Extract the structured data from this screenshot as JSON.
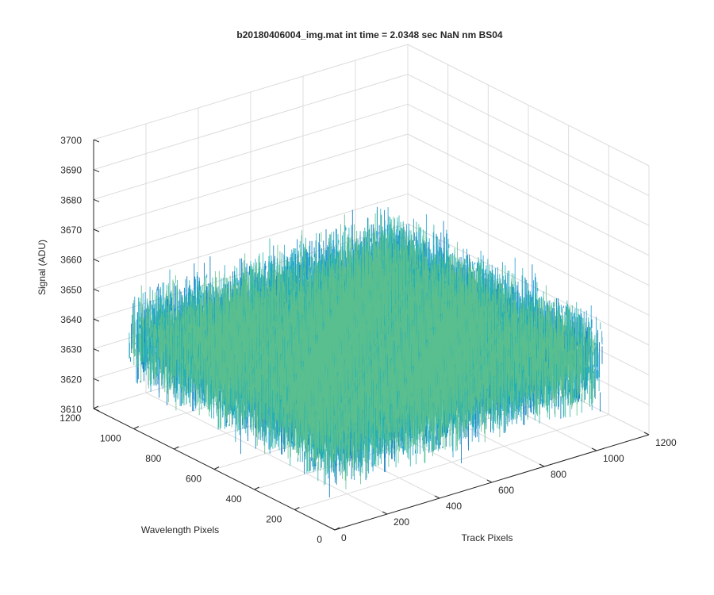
{
  "chart_data": {
    "type": "surface-3d",
    "title": "b20180406004_img.mat int time = 2.0348 sec  NaN nm BS04",
    "xlabel": "Track Pixels",
    "ylabel": "Wavelength Pixels",
    "zlabel": "Signal (ADU)",
    "xlim": [
      0,
      1200
    ],
    "ylim": [
      0,
      1200
    ],
    "zlim": [
      3610,
      3700
    ],
    "x_ticks": [
      "0",
      "200",
      "400",
      "600",
      "800",
      "1000",
      "1200"
    ],
    "y_ticks": [
      "0",
      "200",
      "400",
      "600",
      "800",
      "1000",
      "1200"
    ],
    "z_ticks": [
      "3610",
      "3620",
      "3630",
      "3640",
      "3650",
      "3660",
      "3670",
      "3680",
      "3690",
      "3700"
    ],
    "data_extent": {
      "x": [
        0,
        1024
      ],
      "y": [
        0,
        1024
      ]
    },
    "surface_level_mean": 3640,
    "surface_level_range": [
      3615,
      3690
    ],
    "grid": true,
    "colormap": [
      "#0072BD",
      "#1A9FD1",
      "#22B5B0",
      "#5FC08B",
      "#A9C25A",
      "#D9B838"
    ]
  }
}
